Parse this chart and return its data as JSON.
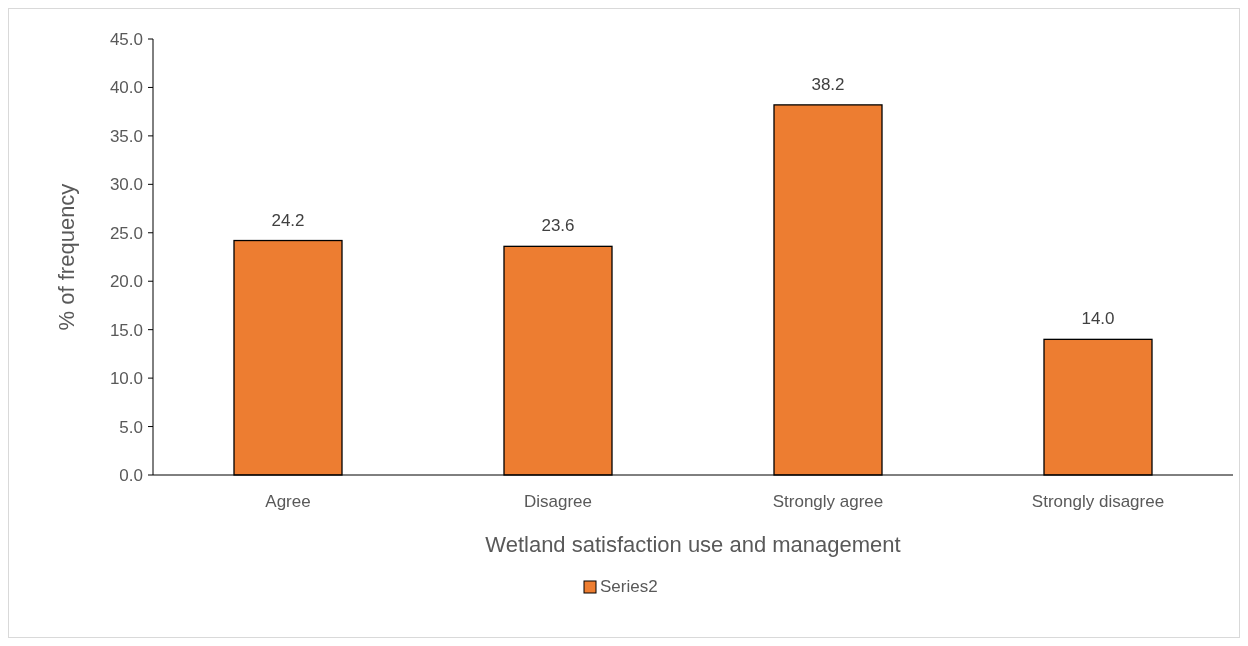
{
  "chart_data": {
    "type": "bar",
    "xlabel": "Wetland satisfaction use and management",
    "ylabel": "% of frequency",
    "categories": [
      "Agree",
      "Disagree",
      "Strongly agree",
      "Strongly disagree"
    ],
    "series": [
      {
        "name": "Series2",
        "color": "#ed7d31",
        "values": [
          24.2,
          23.6,
          38.2,
          14.0
        ]
      }
    ],
    "ylim": [
      0,
      45
    ],
    "yticks": [
      {
        "value": 0,
        "label": "0.0"
      },
      {
        "value": 5,
        "label": "5.0"
      },
      {
        "value": 10,
        "label": "10.0"
      },
      {
        "value": 15,
        "label": "15.0"
      },
      {
        "value": 20,
        "label": "20.0"
      },
      {
        "value": 25,
        "label": "25.0"
      },
      {
        "value": 30,
        "label": "30.0"
      },
      {
        "value": 35,
        "label": "35.0"
      },
      {
        "value": 40,
        "label": "40.0"
      },
      {
        "value": 45,
        "label": "45.0"
      }
    ],
    "value_labels": [
      "24.2",
      "23.6",
      "38.2",
      "14.0"
    ],
    "legend": "bottom",
    "grid": false
  }
}
